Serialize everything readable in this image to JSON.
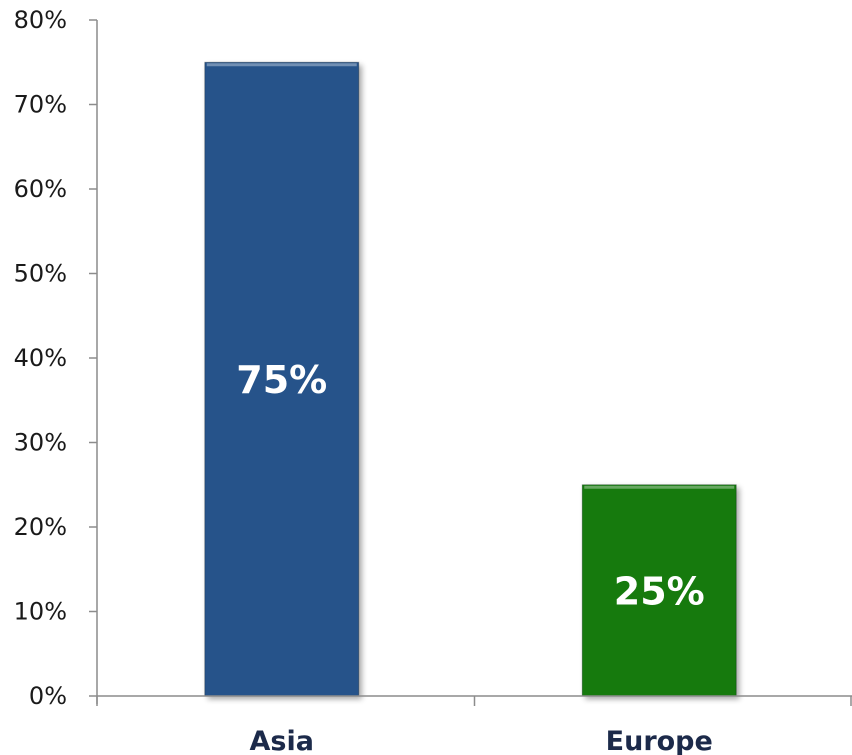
{
  "chart_data": {
    "type": "bar",
    "categories": [
      "Asia",
      "Europe"
    ],
    "values": [
      75,
      25
    ],
    "data_labels": [
      "75%",
      "25%"
    ],
    "colors": [
      "#28538a",
      "#137a10"
    ],
    "ylim": [
      0,
      80
    ],
    "y_ticks": [
      0,
      10,
      20,
      30,
      40,
      50,
      60,
      70,
      80
    ],
    "y_tick_labels": [
      "0%",
      "10%",
      "20%",
      "30%",
      "40%",
      "50%",
      "60%",
      "70%",
      "80%"
    ],
    "grid": false,
    "legend": "none",
    "title": "",
    "xlabel": "",
    "ylabel": ""
  }
}
